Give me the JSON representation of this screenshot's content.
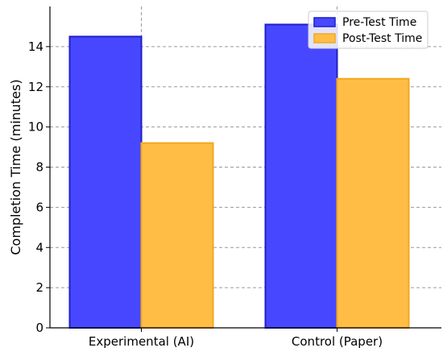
{
  "chart_data": {
    "type": "bar",
    "title": "",
    "xlabel": "",
    "ylabel": "Completion Time (minutes)",
    "categories": [
      "Experimental (AI)",
      "Control (Paper)"
    ],
    "series": [
      {
        "name": "Pre-Test Time",
        "values": [
          14.5,
          15.1
        ],
        "color": "#4747ff",
        "edge": "#1f1fc7"
      },
      {
        "name": "Post-Test Time",
        "values": [
          9.2,
          12.4
        ],
        "color": "#ffbd45",
        "edge": "#f0a91f"
      }
    ],
    "ylim": [
      0,
      16
    ],
    "yticks": [
      0,
      2,
      4,
      6,
      8,
      10,
      12,
      14
    ],
    "grid": true,
    "legend": "top-right"
  }
}
